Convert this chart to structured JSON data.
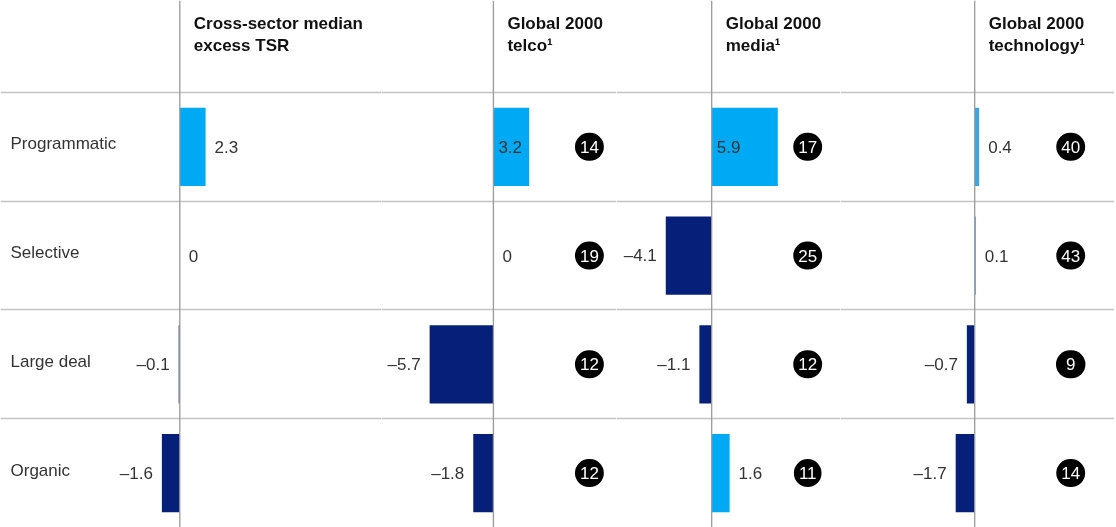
{
  "chart_data": [
    {
      "type": "bar",
      "orientation": "horizontal",
      "title": "Cross-sector median\nexcess TSR",
      "categories": [
        "Programmatic",
        "Selective",
        "Large deal",
        "Organic"
      ],
      "values": [
        2.3,
        0,
        -0.1,
        -1.6
      ],
      "value_labels": [
        "2.3",
        "0",
        "–0.1",
        "–1.6"
      ],
      "colors": [
        "#00a9f4",
        "#00a9f4",
        "#061f78",
        "#061f78"
      ],
      "xlim": [
        -16,
        18
      ],
      "grid": "y",
      "tick_labels": "y",
      "ref_lines": [
        {
          "axis": "x",
          "value": 0,
          "color": "#9a9a9a"
        }
      ]
    },
    {
      "type": "bar",
      "orientation": "horizontal",
      "title": "Global 2000\ntelco¹",
      "categories": [
        null,
        null,
        null,
        null
      ],
      "values": [
        3.2,
        0,
        -5.7,
        -1.8
      ],
      "value_labels": [
        "3.2",
        "0",
        "–5.7",
        "–1.8"
      ],
      "colors": [
        "#00a9f4",
        "#00a9f4",
        "#061f78",
        "#061f78"
      ],
      "xlim": [
        -10,
        11
      ],
      "grid": "y",
      "ref_lines": [
        {
          "axis": "x",
          "value": 0,
          "color": "#9a9a9a"
        }
      ],
      "annotations": [
        "14",
        "19",
        "12",
        "12"
      ]
    },
    {
      "type": "bar",
      "orientation": "horizontal",
      "title": "Global 2000\nmedia¹",
      "categories": [
        null,
        null,
        null,
        null
      ],
      "values": [
        5.9,
        -4.1,
        -1.1,
        1.6
      ],
      "value_labels": [
        "5.9",
        "–4.1",
        "–1.1",
        "1.6"
      ],
      "colors": [
        "#00a9f4",
        "#061f78",
        "#061f78",
        "#00a9f4"
      ],
      "xlim": [
        -8.5,
        11.5
      ],
      "grid": "y",
      "ref_lines": [
        {
          "axis": "x",
          "value": 0,
          "color": "#9a9a9a"
        }
      ],
      "annotations": [
        "17",
        "25",
        "12",
        "11"
      ]
    },
    {
      "type": "bar",
      "orientation": "horizontal",
      "title": "Global 2000\ntechnology¹",
      "categories": [
        null,
        null,
        null,
        null
      ],
      "values": [
        0.4,
        0.1,
        -0.7,
        -1.7
      ],
      "value_labels": [
        "0.4",
        "0.1",
        "–0.7",
        "–1.7"
      ],
      "colors": [
        "#3aa5de",
        "#3aa5de",
        "#061f78",
        "#061f78"
      ],
      "xlim": [
        -12,
        12.5
      ],
      "grid": "y",
      "ref_lines": [
        {
          "axis": "x",
          "value": 0,
          "color": "#9a9a9a"
        }
      ],
      "annotations": [
        "40",
        "43",
        "9",
        "14"
      ]
    }
  ]
}
